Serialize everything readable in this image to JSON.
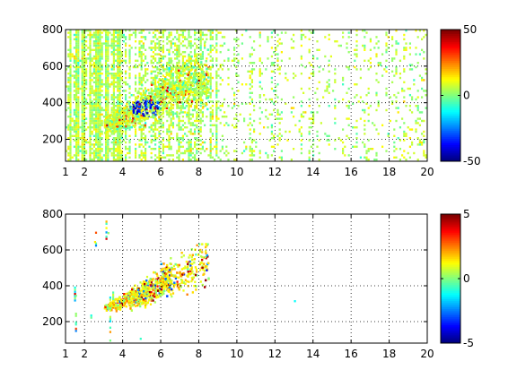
{
  "chart_data": [
    {
      "type": "heatmap",
      "title": "",
      "xlabel": "",
      "ylabel": "",
      "xlim": [
        1,
        20
      ],
      "ylim": [
        80,
        800
      ],
      "xticks": [
        1,
        2,
        4,
        6,
        8,
        10,
        12,
        14,
        16,
        18,
        20
      ],
      "yticks": [
        200,
        400,
        600,
        800
      ],
      "grid": true,
      "colormap": "jet",
      "clim": [
        -50,
        50
      ],
      "colorbar_ticks": [
        -50,
        0,
        50
      ],
      "features": [
        {
          "name": "vertical streaks across all x",
          "x_range": [
            1,
            20
          ],
          "y_range": [
            80,
            800
          ]
        },
        {
          "name": "dense curved band",
          "x_range": [
            3,
            8.5
          ],
          "y_center_at_x": [
            [
              3,
              280
            ],
            [
              4,
              320
            ],
            [
              5,
              380
            ],
            [
              6,
              450
            ],
            [
              7,
              500
            ],
            [
              8,
              520
            ]
          ],
          "extreme_low": {
            "x": 5.2,
            "y": 380,
            "value": -45
          }
        }
      ]
    },
    {
      "type": "heatmap",
      "title": "",
      "xlabel": "",
      "ylabel": "",
      "xlim": [
        1,
        20
      ],
      "ylim": [
        80,
        800
      ],
      "xticks": [
        1,
        2,
        4,
        6,
        8,
        10,
        12,
        14,
        16,
        18,
        20
      ],
      "yticks": [
        200,
        400,
        600,
        800
      ],
      "grid": true,
      "colormap": "jet",
      "clim": [
        -5,
        5
      ],
      "colorbar_ticks": [
        -5,
        0,
        5
      ],
      "features": [
        {
          "name": "sparse curved band",
          "x_range": [
            3,
            8.5
          ],
          "y_center_at_x": [
            [
              3,
              280
            ],
            [
              4,
              320
            ],
            [
              5,
              360
            ],
            [
              6,
              420
            ],
            [
              7,
              470
            ],
            [
              8,
              520
            ]
          ]
        },
        {
          "name": "isolated points",
          "points": [
            [
              1.5,
              350
            ],
            [
              2.5,
              650
            ],
            [
              3.2,
              700
            ],
            [
              7.8,
              580
            ],
            [
              13,
              320
            ],
            [
              4.9,
              110
            ]
          ]
        }
      ]
    }
  ]
}
